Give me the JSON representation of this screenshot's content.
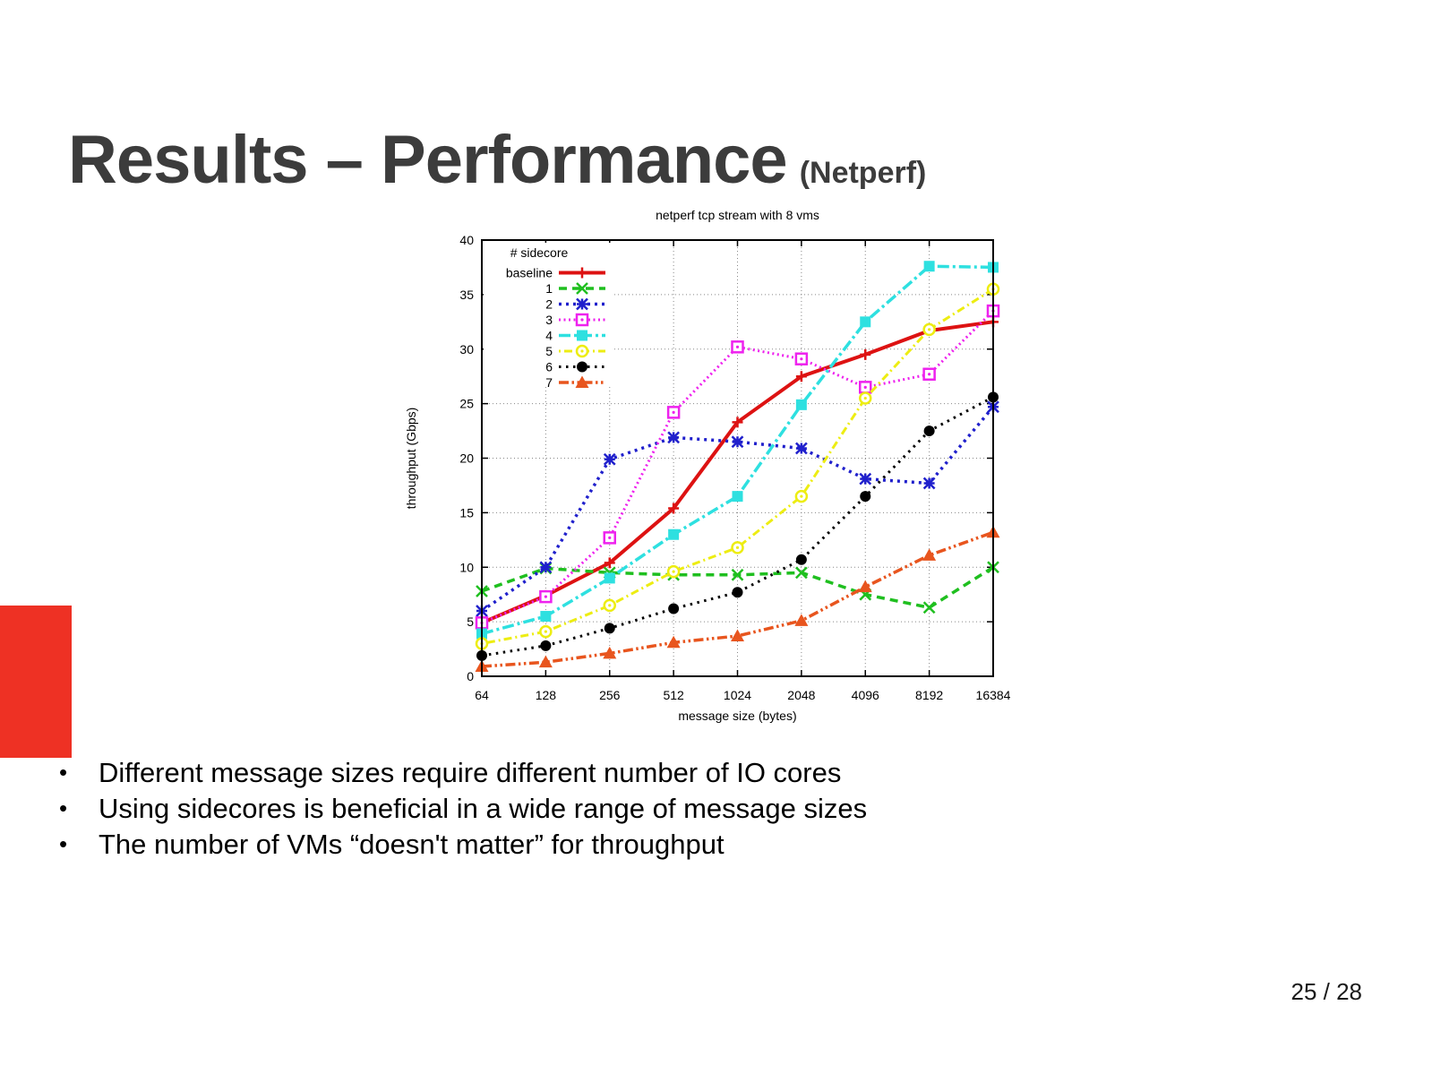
{
  "slide_title": {
    "main": "Results – Performance",
    "sub": "(Netperf)"
  },
  "bullets": [
    "Different message sizes require different number of IO cores",
    "Using sidecores is beneficial in a wide range of message sizes",
    "The number of VMs “doesn't matter” for throughput"
  ],
  "page_number": "25 / 28",
  "accent_color": "#ee3124",
  "chart_data": {
    "type": "line",
    "title": "netperf tcp stream with 8 vms",
    "xlabel": "message size (bytes)",
    "ylabel": "throughput (Gbps)",
    "categories": [
      "64",
      "128",
      "256",
      "512",
      "1024",
      "2048",
      "4096",
      "8192",
      "16384"
    ],
    "ylim": [
      0,
      40
    ],
    "ytick_step": 5,
    "grid": true,
    "legend_title": "# sidecore",
    "legend_position": "top-left-inside",
    "series": [
      {
        "name": "baseline",
        "color": "#dd1212",
        "marker": "plus",
        "dash": "",
        "width": 4,
        "values": [
          4.9,
          7.4,
          10.4,
          15.4,
          23.3,
          27.5,
          29.5,
          31.7,
          32.5
        ]
      },
      {
        "name": "1",
        "color": "#1fbf1f",
        "marker": "cross",
        "dash": "9,6",
        "width": 3.5,
        "values": [
          7.8,
          9.9,
          9.5,
          9.3,
          9.3,
          9.5,
          7.5,
          6.3,
          10.0
        ]
      },
      {
        "name": "2",
        "color": "#2020cc",
        "marker": "asterisk",
        "dash": "3,5",
        "width": 3.5,
        "values": [
          6.0,
          10.0,
          19.9,
          21.9,
          21.5,
          20.9,
          18.1,
          17.7,
          24.7
        ]
      },
      {
        "name": "3",
        "color": "#ee22ee",
        "marker": "square-open",
        "dash": "2,3.5",
        "width": 3,
        "values": [
          4.9,
          7.3,
          12.7,
          24.2,
          30.2,
          29.1,
          26.5,
          27.7,
          33.5
        ]
      },
      {
        "name": "4",
        "color": "#2ee0e0",
        "marker": "square-filled",
        "dash": "13,4,3,4",
        "width": 3.5,
        "values": [
          3.9,
          5.5,
          9.0,
          13.0,
          16.5,
          24.9,
          32.5,
          37.6,
          37.5
        ]
      },
      {
        "name": "5",
        "color": "#eded12",
        "marker": "circle-open",
        "dash": "2,4,9,4",
        "width": 3,
        "values": [
          3.0,
          4.1,
          6.5,
          9.6,
          11.8,
          16.5,
          25.5,
          31.8,
          35.5
        ]
      },
      {
        "name": "6",
        "color": "#000000",
        "marker": "circle-filled",
        "dash": "2.5,5.5",
        "width": 3,
        "values": [
          1.9,
          2.8,
          4.4,
          6.2,
          7.7,
          10.7,
          16.5,
          22.5,
          25.6
        ]
      },
      {
        "name": "7",
        "color": "#e8551e",
        "marker": "triangle-filled",
        "dash": "11,3.5,2.5,3.5,2.5,3.5",
        "width": 3.5,
        "values": [
          0.9,
          1.3,
          2.1,
          3.1,
          3.7,
          5.1,
          8.2,
          11.1,
          13.2
        ]
      }
    ]
  }
}
